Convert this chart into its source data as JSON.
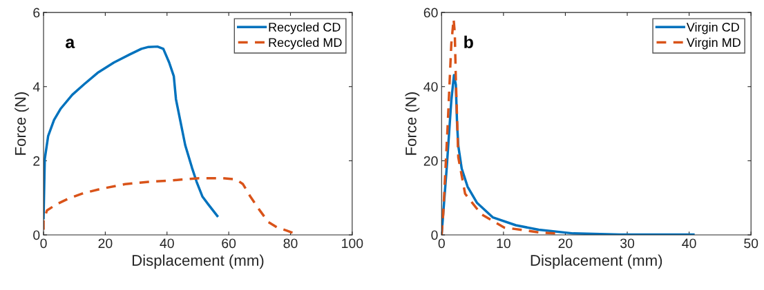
{
  "chart_data": [
    {
      "type": "line",
      "xlabel": "Displacement (mm)",
      "ylabel": "Force (N)",
      "annotations": [
        "a"
      ],
      "xlim": [
        0,
        100
      ],
      "ylim": [
        0,
        6
      ],
      "xticks": [
        0,
        20,
        40,
        60,
        80,
        100
      ],
      "yticks": [
        0,
        2,
        4,
        6
      ],
      "grid": false,
      "legend": "top right",
      "marker": "none",
      "series": [
        {
          "name": "Recycled CD",
          "color": "#0072bd",
          "line_style": "solid",
          "x": [
            0,
            0.4,
            1.5,
            3.4,
            5.6,
            9.3,
            13.1,
            17.5,
            22.8,
            28,
            31.7,
            34,
            36.9,
            38.8,
            40.7,
            42.2,
            42.9,
            44.4,
            45.9,
            48.1,
            49.6,
            51.5,
            53.4,
            56.3
          ],
          "values": [
            0.45,
            2.05,
            2.67,
            3.1,
            3.41,
            3.78,
            4.06,
            4.37,
            4.65,
            4.87,
            5.02,
            5.07,
            5.08,
            5.02,
            4.65,
            4.28,
            3.66,
            3.04,
            2.42,
            1.81,
            1.43,
            1.03,
            0.82,
            0.51
          ]
        },
        {
          "name": "Recycled MD",
          "color": "#d95319",
          "line_style": "dashed",
          "x": [
            0,
            0,
            1.1,
            4.1,
            7.8,
            13.1,
            19,
            26.5,
            34,
            41.4,
            50.4,
            57.8,
            62.3,
            64.6,
            66.8,
            69.8,
            72.8,
            75.7,
            78.7,
            81.3
          ],
          "values": [
            0.14,
            0.38,
            0.66,
            0.82,
            0.97,
            1.13,
            1.25,
            1.37,
            1.43,
            1.47,
            1.53,
            1.53,
            1.5,
            1.37,
            1.06,
            0.69,
            0.35,
            0.2,
            0.12,
            0.04
          ]
        }
      ]
    },
    {
      "type": "line",
      "xlabel": "Displacement (mm)",
      "ylabel": "Force (N)",
      "annotations": [
        "b"
      ],
      "xlim": [
        0,
        50
      ],
      "ylim": [
        0,
        60
      ],
      "xticks": [
        0,
        10,
        20,
        30,
        40,
        50
      ],
      "yticks": [
        0,
        20,
        40,
        60
      ],
      "grid": false,
      "legend": "top right",
      "marker": "none",
      "series": [
        {
          "name": "Virgin CD",
          "color": "#0072bd",
          "line_style": "solid",
          "x": [
            0,
            0.82,
            1.57,
            2.0,
            2.3,
            2.5,
            2.7,
            3.25,
            4.2,
            5.7,
            8.3,
            12,
            15.7,
            21.3,
            28.8,
            40.7
          ],
          "values": [
            0,
            17.9,
            36.2,
            43.1,
            40.5,
            30.1,
            24,
            17.9,
            13,
            8.7,
            4.7,
            2.6,
            1.4,
            0.4,
            0.1,
            0.1
          ]
        },
        {
          "name": "Virgin MD",
          "color": "#d95319",
          "line_style": "dashed",
          "x": [
            0,
            0.26,
            1.0,
            1.57,
            1.94,
            2.13,
            2.3,
            2.7,
            3.8,
            6.4,
            10.1,
            15.7,
            18.4
          ],
          "values": [
            0,
            5.6,
            30.1,
            51.5,
            58.2,
            54.6,
            42.3,
            20.9,
            11.1,
            5.6,
            2.0,
            0.7,
            0.4
          ]
        }
      ]
    }
  ]
}
